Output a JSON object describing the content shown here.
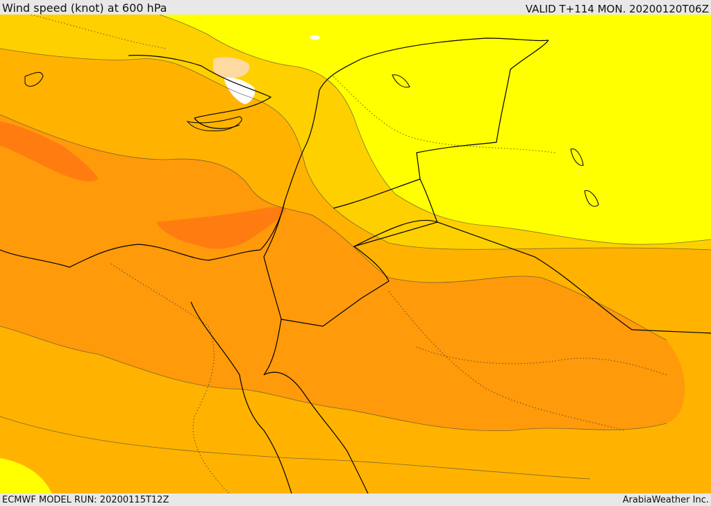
{
  "header": {
    "title": "Wind speed (knot) at 600 hPa",
    "valid": "VALID T+114 MON. 20200120T06Z"
  },
  "footer": {
    "model_run": "ECMWF MODEL RUN: 20200115T12Z",
    "credit": "ArabiaWeather Inc."
  },
  "colors": {
    "background_band": "#ffd000",
    "outer_band": "#ffb300",
    "inner_band": "#ff9a0a",
    "core_band": "#ff7d10",
    "calm_band": "#ffff00",
    "light_spot": "#fed9a0",
    "white_spot": "#ffffff"
  }
}
